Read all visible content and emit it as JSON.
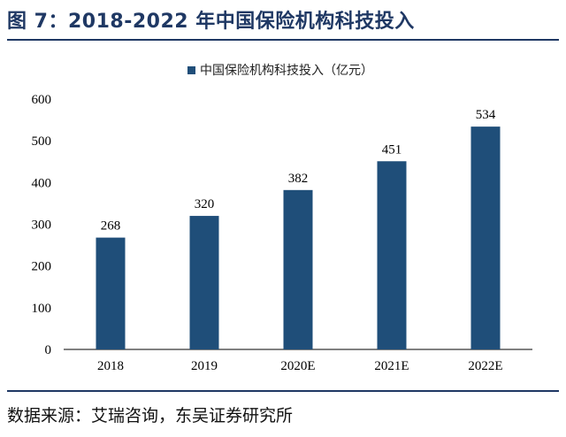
{
  "figure": {
    "title": "图 7：2018-2022 年中国保险机构科技投入",
    "source": "数据来源：艾瑞咨询，东吴证券研究所"
  },
  "colors": {
    "bar": "#1f4e79",
    "rule": "#1f3864",
    "axis": "#000000"
  },
  "chart_data": {
    "type": "bar",
    "categories": [
      "2018",
      "2019",
      "2020E",
      "2021E",
      "2022E"
    ],
    "series": [
      {
        "name": "中国保险机构科技投入（亿元）",
        "values": [
          268,
          320,
          382,
          451,
          534
        ]
      }
    ],
    "data_labels": [
      "268",
      "320",
      "382",
      "451",
      "534"
    ],
    "ylim": [
      0,
      600
    ],
    "yticks": [
      0,
      100,
      200,
      300,
      400,
      500,
      600
    ],
    "ytick_labels": [
      "0",
      "100",
      "200",
      "300",
      "400",
      "500",
      "600"
    ],
    "grid": false,
    "legend_position": "top-center",
    "xlabel": "",
    "ylabel": ""
  }
}
